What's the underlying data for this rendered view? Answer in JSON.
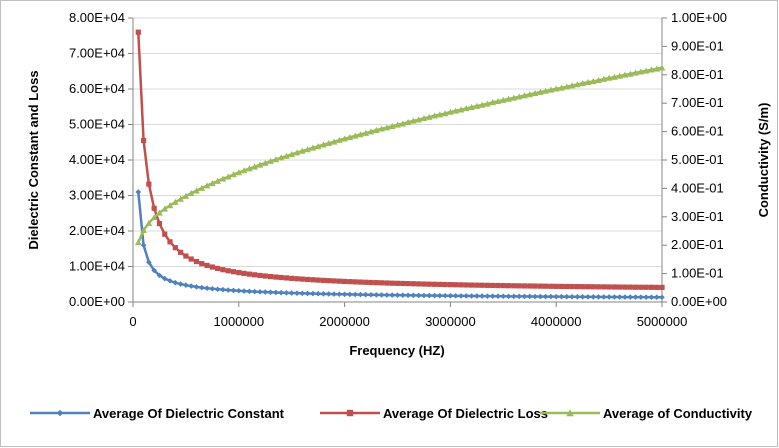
{
  "chart_data": {
    "type": "line",
    "xlabel": "Frequency (HZ)",
    "ylabel_left": "Dielectric Constant and Loss",
    "ylabel_right": "Conductivity (S/m)",
    "xlim": [
      0,
      5000000
    ],
    "x_ticks": [
      "0",
      "1000000",
      "2000000",
      "3000000",
      "4000000",
      "5000000"
    ],
    "ylim_left": [
      0,
      80000
    ],
    "y_ticks_left": [
      "0.00E+00",
      "1.00E+04",
      "2.00E+04",
      "3.00E+04",
      "4.00E+04",
      "5.00E+04",
      "6.00E+04",
      "7.00E+04",
      "8.00E+04"
    ],
    "ylim_right": [
      0,
      1.0
    ],
    "y_ticks_right": [
      "0.00E+00",
      "1.00E-01",
      "2.00E-01",
      "3.00E-01",
      "4.00E-01",
      "5.00E-01",
      "6.00E-01",
      "7.00E-01",
      "8.00E-01",
      "9.00E-01",
      "1.00E+00"
    ],
    "grid": "horizontal",
    "legend_position": "bottom",
    "x_start": 50000,
    "x_step": 50000,
    "x_count": 100,
    "series": [
      {
        "name": "Average Of Dielectric Constant",
        "axis": "left",
        "color": "#4f81bd",
        "marker": "diamond",
        "values": [
          31000,
          16000,
          11200,
          8900,
          7500,
          6600,
          5950,
          5450,
          5050,
          4750,
          4480,
          4250,
          4050,
          3880,
          3730,
          3590,
          3470,
          3360,
          3260,
          3170,
          3080,
          3000,
          2930,
          2860,
          2800,
          2740,
          2680,
          2630,
          2580,
          2530,
          2490,
          2450,
          2410,
          2370,
          2330,
          2300,
          2260,
          2230,
          2200,
          2170,
          2140,
          2110,
          2090,
          2060,
          2040,
          2010,
          1990,
          1970,
          1950,
          1930,
          1910,
          1890,
          1870,
          1850,
          1830,
          1820,
          1800,
          1780,
          1770,
          1750,
          1740,
          1720,
          1710,
          1690,
          1680,
          1670,
          1650,
          1640,
          1630,
          1620,
          1600,
          1590,
          1580,
          1570,
          1560,
          1550,
          1540,
          1530,
          1520,
          1510,
          1500,
          1490,
          1480,
          1470,
          1460,
          1450,
          1440,
          1430,
          1420,
          1420,
          1410,
          1400,
          1390,
          1380,
          1380,
          1370,
          1360,
          1350,
          1350,
          1340
        ]
      },
      {
        "name": "Average Of Dielectric Loss",
        "axis": "left",
        "color": "#c0504d",
        "marker": "square",
        "values": [
          76000,
          45500,
          33200,
          26400,
          22100,
          19100,
          16950,
          15300,
          14000,
          12950,
          12100,
          11400,
          10800,
          10300,
          9850,
          9450,
          9100,
          8800,
          8530,
          8280,
          8060,
          7850,
          7660,
          7480,
          7320,
          7170,
          7030,
          6900,
          6780,
          6660,
          6550,
          6450,
          6350,
          6260,
          6170,
          6090,
          6010,
          5940,
          5870,
          5800,
          5730,
          5670,
          5610,
          5550,
          5500,
          5450,
          5400,
          5350,
          5300,
          5260,
          5220,
          5180,
          5140,
          5100,
          5060,
          5020,
          4990,
          4960,
          4920,
          4890,
          4860,
          4830,
          4800,
          4770,
          4740,
          4720,
          4690,
          4670,
          4640,
          4620,
          4590,
          4570,
          4550,
          4530,
          4510,
          4490,
          4470,
          4450,
          4430,
          4410,
          4390,
          4370,
          4360,
          4340,
          4320,
          4310,
          4290,
          4270,
          4260,
          4240,
          4230,
          4210,
          4200,
          4190,
          4170,
          4160,
          4150,
          4140,
          4120,
          4110
        ]
      },
      {
        "name": "Average of Conductivity",
        "axis": "right",
        "color": "#9bbb59",
        "marker": "triangle",
        "values": [
          0.21,
          0.253,
          0.278,
          0.298,
          0.314,
          0.328,
          0.34,
          0.352,
          0.363,
          0.373,
          0.383,
          0.392,
          0.401,
          0.41,
          0.418,
          0.426,
          0.434,
          0.441,
          0.449,
          0.456,
          0.463,
          0.47,
          0.476,
          0.483,
          0.489,
          0.496,
          0.502,
          0.508,
          0.514,
          0.52,
          0.526,
          0.532,
          0.537,
          0.543,
          0.548,
          0.554,
          0.559,
          0.564,
          0.57,
          0.575,
          0.58,
          0.585,
          0.59,
          0.595,
          0.6,
          0.605,
          0.61,
          0.614,
          0.619,
          0.624,
          0.628,
          0.633,
          0.638,
          0.642,
          0.647,
          0.651,
          0.656,
          0.66,
          0.664,
          0.669,
          0.673,
          0.677,
          0.682,
          0.686,
          0.69,
          0.694,
          0.698,
          0.703,
          0.707,
          0.711,
          0.715,
          0.719,
          0.723,
          0.727,
          0.731,
          0.735,
          0.739,
          0.743,
          0.747,
          0.751,
          0.754,
          0.758,
          0.762,
          0.766,
          0.77,
          0.774,
          0.777,
          0.781,
          0.785,
          0.789,
          0.792,
          0.796,
          0.8,
          0.803,
          0.807,
          0.811,
          0.814,
          0.818,
          0.821,
          0.825
        ]
      }
    ]
  }
}
